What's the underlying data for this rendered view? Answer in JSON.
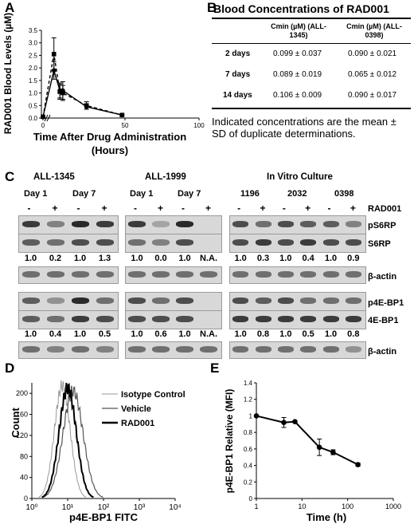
{
  "panels": {
    "A": "A",
    "B": "B",
    "C": "C",
    "D": "D",
    "E": "E"
  },
  "panelA": {
    "ylabel": "RAD001 Blood Levels (µM)",
    "xlabel": "Time After Drug Administration (Hours)",
    "yticks": [
      "0.0",
      "0.5",
      "1.0",
      "1.5",
      "2.0",
      "2.5",
      "3.0",
      "3.5"
    ],
    "xticks": [
      "0",
      "50",
      "100"
    ]
  },
  "panelB": {
    "title": "Blood Concentrations of RAD001",
    "col1": "Cmin (µM) (ALL-1345)",
    "col2": "Cmin (µM) (ALL-0398)",
    "rows": [
      {
        "label": "2 days",
        "v1": "0.099 ± 0.037",
        "v2": "0.090 ± 0.021"
      },
      {
        "label": "7 days",
        "v1": "0.089 ± 0.019",
        "v2": "0.065 ± 0.012"
      },
      {
        "label": "14 days",
        "v1": "0.106 ± 0.009",
        "v2": "0.090 ± 0.017"
      }
    ],
    "note": "Indicated concentrations are the mean ± SD of duplicate determinations."
  },
  "panelC": {
    "groups": [
      "ALL-1345",
      "ALL-1999",
      "In Vitro Culture"
    ],
    "days": [
      "Day 1",
      "Day 7",
      "Day 1",
      "Day 7"
    ],
    "lines": [
      "1196",
      "2032",
      "0398"
    ],
    "treatment": "RAD001",
    "minus": "-",
    "plus": "+",
    "rows": [
      "pS6RP",
      "S6RP",
      "β-actin",
      "p4E-BP1",
      "4E-BP1",
      "β-actin"
    ],
    "quant1": [
      "1.0",
      "0.2",
      "1.0",
      "1.3",
      "1.0",
      "0.0",
      "1.0",
      "N.A.",
      "1.0",
      "0.3",
      "1.0",
      "0.4",
      "1.0",
      "0.9"
    ],
    "quant2": [
      "1.0",
      "0.4",
      "1.0",
      "0.5",
      "1.0",
      "0.6",
      "1.0",
      "N.A.",
      "1.0",
      "0.8",
      "1.0",
      "0.5",
      "1.0",
      "0.8"
    ]
  },
  "panelD": {
    "ylabel": "Count",
    "xlabel": "p4E-BP1 FITC",
    "legend": [
      "Isotype Control",
      "Vehicle",
      "RAD001"
    ],
    "yticks": [
      "0",
      "40",
      "80",
      "120",
      "160",
      "200"
    ],
    "xticks": [
      "10⁰",
      "10¹",
      "10²",
      "10³",
      "10⁴"
    ]
  },
  "chart_data": [
    {
      "type": "line",
      "panel": "A",
      "xlabel": "Time After Drug Administration (Hours)",
      "ylabel": "RAD001 Blood Levels (µM)",
      "xlim": [
        0,
        100
      ],
      "ylim": [
        0,
        3.5
      ],
      "series": [
        {
          "style": "solid",
          "x": [
            0,
            2,
            6,
            8,
            24,
            48
          ],
          "y": [
            0.05,
            1.9,
            1.1,
            1.1,
            0.45,
            0.12
          ],
          "err": [
            0,
            0.35,
            0.3,
            0.35,
            0.1,
            0.03
          ]
        },
        {
          "style": "dashed",
          "x": [
            0,
            2,
            6,
            8,
            24,
            48
          ],
          "y": [
            0.05,
            2.55,
            1.05,
            1.0,
            0.5,
            0.12
          ],
          "err": [
            0,
            0.65,
            0.3,
            0.3,
            0.15,
            0.03
          ]
        }
      ]
    },
    {
      "type": "line",
      "panel": "E",
      "xlabel": "Time (h)",
      "ylabel": "p4E-BP1 Relative (MFI)",
      "xscale": "log",
      "xlim": [
        1,
        1000
      ],
      "ylim": [
        0,
        1.4
      ],
      "xticks": [
        "1",
        "10",
        "100",
        "1000"
      ],
      "yticks": [
        "0",
        "0.2",
        "0.4",
        "0.6",
        "0.8",
        "1",
        "1.2",
        "1.4"
      ],
      "series": [
        {
          "x": [
            1,
            4,
            7,
            24,
            48,
            168
          ],
          "y": [
            1.0,
            0.92,
            0.93,
            0.62,
            0.56,
            0.41
          ],
          "err": [
            0,
            0.06,
            0.01,
            0.1,
            0.03,
            0.02
          ]
        }
      ]
    }
  ]
}
